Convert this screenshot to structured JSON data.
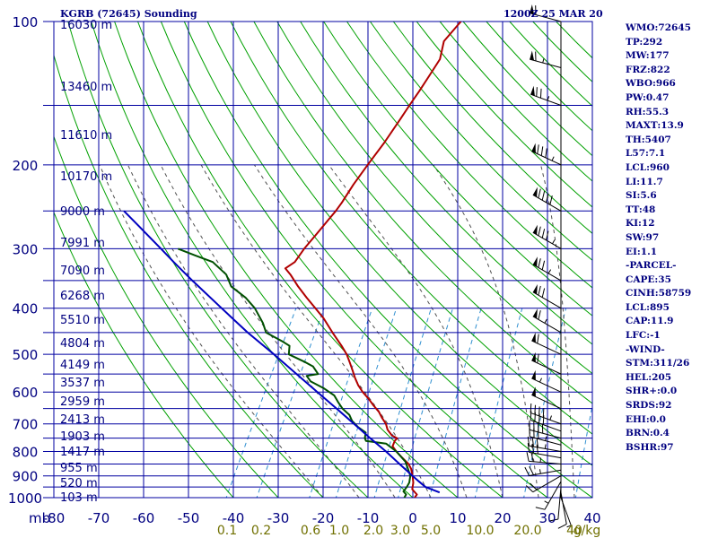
{
  "header": {
    "station_title": "KGRB (72645) Sounding",
    "time_title": "1200Z 25 MAR 20"
  },
  "pressure_axis": {
    "labels": [
      "100",
      "200",
      "300",
      "400",
      "500",
      "600",
      "700",
      "800",
      "900",
      "1000"
    ],
    "unit_label": "mb"
  },
  "height_labels": [
    "16030 m",
    "13460 m",
    "11610 m",
    "10170 m",
    "9000 m",
    "7991 m",
    "7090 m",
    "6268 m",
    "5510 m",
    "4804 m",
    "4149 m",
    "3537 m",
    "2959 m",
    "2413 m",
    "1903 m",
    "1417 m",
    "955 m",
    "520 m",
    "103 m"
  ],
  "temperature_axis": {
    "labels": [
      "-80",
      "-70",
      "-60",
      "-50",
      "-40",
      "-30",
      "-20",
      "-10",
      "0",
      "10",
      "20",
      "30",
      "40"
    ]
  },
  "mixing_ratio_axis": {
    "labels": [
      "0.1",
      "0.2",
      "0.6",
      "1.0",
      "2.0",
      "3.0",
      "5.0",
      "10.0",
      "20.0",
      "40",
      "g/kg"
    ]
  },
  "indices": [
    "WMO:72645",
    "TP:292",
    "MW:177",
    "FRZ:822",
    "WBO:966",
    "PW:0.47",
    "RH:55.3",
    "MAXT:13.9",
    "TH:5407",
    "L57:7.1",
    "LCL:960",
    "LI:11.7",
    "SI:5.6",
    "TT:48",
    "KI:12",
    "SW:97",
    "EI:1.1",
    "-PARCEL-",
    "CAPE:35",
    "CINH:58759",
    "LCL:895",
    "CAP:11.9",
    "LFC:-1",
    "-WIND-",
    "STM:311/26",
    "HEL:205",
    "SHR+:0.0",
    "SRDS:92",
    "EHI:0.0",
    "BRN:0.4",
    "BSHR:97"
  ],
  "colors": {
    "grid": "#0000a0",
    "dry_adiabat": "#00a000",
    "moist_adiabat": "#505050",
    "mixing_ratio": "#2f8fd0",
    "temperature": "#b00000",
    "dewpoint": "#005000",
    "parcel": "#0000c0",
    "axis_text": "#000080",
    "mixing_text": "#707000",
    "sidebar_text": "#000080"
  },
  "chart_data": {
    "type": "line",
    "chart_kind": "skew-T log-P sounding",
    "x_unit": "°C",
    "y_unit": "mb",
    "y_scale": "log, inverted",
    "xlim": [
      -80,
      40
    ],
    "ylim": [
      1000,
      100
    ],
    "series": [
      {
        "role": "temperature",
        "points": [
          [
            1000,
            0.4
          ],
          [
            985,
            0.5
          ],
          [
            960,
            -1.2
          ],
          [
            930,
            -1.8
          ],
          [
            900,
            -2.8
          ],
          [
            870,
            -4.0
          ],
          [
            850,
            -5.2
          ],
          [
            820,
            -7.8
          ],
          [
            800,
            -9.5
          ],
          [
            780,
            -11.0
          ],
          [
            760,
            -11.2
          ],
          [
            750,
            -11.0
          ],
          [
            740,
            -12.5
          ],
          [
            720,
            -14.2
          ],
          [
            700,
            -15.3
          ],
          [
            680,
            -16.9
          ],
          [
            660,
            -18.4
          ],
          [
            640,
            -20.4
          ],
          [
            620,
            -22.3
          ],
          [
            600,
            -24.5
          ],
          [
            580,
            -26.4
          ],
          [
            560,
            -28.0
          ],
          [
            540,
            -29.5
          ],
          [
            520,
            -31.1
          ],
          [
            500,
            -32.8
          ],
          [
            480,
            -35.0
          ],
          [
            450,
            -38.7
          ],
          [
            420,
            -42.5
          ],
          [
            400,
            -45.6
          ],
          [
            380,
            -48.9
          ],
          [
            360,
            -52.2
          ],
          [
            340,
            -55.4
          ],
          [
            330,
            -57.3
          ],
          [
            320,
            -56.0
          ],
          [
            300,
            -55.6
          ],
          [
            280,
            -54.7
          ],
          [
            260,
            -53.8
          ],
          [
            250,
            -53.3
          ],
          [
            240,
            -53.0
          ],
          [
            220,
            -52.7
          ],
          [
            200,
            -52.0
          ],
          [
            180,
            -51.1
          ],
          [
            160,
            -50.5
          ],
          [
            150,
            -50.2
          ],
          [
            140,
            -49.8
          ],
          [
            130,
            -49.5
          ],
          [
            120,
            -49.2
          ],
          [
            110,
            -50.6
          ],
          [
            100,
            -49.3
          ]
        ]
      },
      {
        "role": "dewpoint",
        "points": [
          [
            1000,
            -1.9
          ],
          [
            985,
            -1.9
          ],
          [
            970,
            -2.9
          ],
          [
            950,
            -2.7
          ],
          [
            930,
            -2.7
          ],
          [
            900,
            -3.3
          ],
          [
            870,
            -4.7
          ],
          [
            840,
            -6.2
          ],
          [
            800,
            -9.5
          ],
          [
            770,
            -12.8
          ],
          [
            760,
            -17.6
          ],
          [
            750,
            -18.2
          ],
          [
            730,
            -18.7
          ],
          [
            710,
            -21.2
          ],
          [
            690,
            -23.2
          ],
          [
            670,
            -24.6
          ],
          [
            650,
            -26.9
          ],
          [
            630,
            -28.7
          ],
          [
            610,
            -30.4
          ],
          [
            590,
            -33.5
          ],
          [
            570,
            -37.4
          ],
          [
            555,
            -39.0
          ],
          [
            550,
            -36.7
          ],
          [
            530,
            -38.8
          ],
          [
            520,
            -40.9
          ],
          [
            500,
            -45.7
          ],
          [
            480,
            -46.6
          ],
          [
            470,
            -48.7
          ],
          [
            450,
            -53.5
          ],
          [
            430,
            -55.4
          ],
          [
            400,
            -59.1
          ],
          [
            380,
            -62.5
          ],
          [
            360,
            -67.1
          ],
          [
            340,
            -69.7
          ],
          [
            320,
            -74.3
          ],
          [
            310,
            -79.0
          ],
          [
            300,
            -83.7
          ]
        ]
      },
      {
        "role": "parcel",
        "points": [
          [
            975,
            5.3
          ],
          [
            950,
            1.5
          ],
          [
            920,
            -1.1
          ],
          [
            900,
            -2.8
          ],
          [
            850,
            -7.2
          ],
          [
            800,
            -11.8
          ],
          [
            750,
            -17.0
          ],
          [
            700,
            -22.4
          ],
          [
            650,
            -28.2
          ],
          [
            600,
            -34.6
          ],
          [
            550,
            -41.5
          ],
          [
            500,
            -49.0
          ],
          [
            450,
            -57.6
          ],
          [
            400,
            -66.5
          ],
          [
            350,
            -76.5
          ],
          [
            320,
            -83.0
          ],
          [
            300,
            -87.5
          ],
          [
            270,
            -95.0
          ],
          [
            250,
            -100.5
          ]
        ]
      }
    ],
    "dry_adiabats_theta_c": [
      -40,
      -30,
      -20,
      -10,
      0,
      10,
      20,
      30,
      40,
      50,
      60,
      70,
      80,
      90,
      100,
      110,
      120,
      130,
      140,
      150,
      160,
      170,
      180,
      190,
      200
    ],
    "moist_adiabats_thetaw_c": [
      -20,
      -12,
      -4,
      4,
      12,
      20,
      28,
      36
    ],
    "mixing_ratio_lines_gkg": [
      0.1,
      0.2,
      0.6,
      1.0,
      2.0,
      3.0,
      5.0,
      10.0,
      20.0,
      40.0
    ],
    "wind_barbs": [
      {
        "p": 1000,
        "dir": 160,
        "kt": 5
      },
      {
        "p": 975,
        "dir": 170,
        "kt": 10
      },
      {
        "p": 950,
        "dir": 185,
        "kt": 10
      },
      {
        "p": 925,
        "dir": 210,
        "kt": 15
      },
      {
        "p": 900,
        "dir": 240,
        "kt": 20
      },
      {
        "p": 875,
        "dir": 260,
        "kt": 25
      },
      {
        "p": 850,
        "dir": 275,
        "kt": 25
      },
      {
        "p": 825,
        "dir": 280,
        "kt": 30
      },
      {
        "p": 800,
        "dir": 280,
        "kt": 35
      },
      {
        "p": 775,
        "dir": 285,
        "kt": 35
      },
      {
        "p": 750,
        "dir": 285,
        "kt": 40
      },
      {
        "p": 725,
        "dir": 290,
        "kt": 40
      },
      {
        "p": 700,
        "dir": 290,
        "kt": 45
      },
      {
        "p": 650,
        "dir": 295,
        "kt": 50
      },
      {
        "p": 600,
        "dir": 295,
        "kt": 55
      },
      {
        "p": 550,
        "dir": 295,
        "kt": 60
      },
      {
        "p": 500,
        "dir": 295,
        "kt": 60
      },
      {
        "p": 450,
        "dir": 300,
        "kt": 65
      },
      {
        "p": 400,
        "dir": 300,
        "kt": 70
      },
      {
        "p": 350,
        "dir": 300,
        "kt": 75
      },
      {
        "p": 300,
        "dir": 300,
        "kt": 85
      },
      {
        "p": 250,
        "dir": 300,
        "kt": 90
      },
      {
        "p": 200,
        "dir": 295,
        "kt": 85
      },
      {
        "p": 150,
        "dir": 290,
        "kt": 75
      },
      {
        "p": 125,
        "dir": 285,
        "kt": 65
      },
      {
        "p": 100,
        "dir": 285,
        "kt": 60
      }
    ]
  }
}
